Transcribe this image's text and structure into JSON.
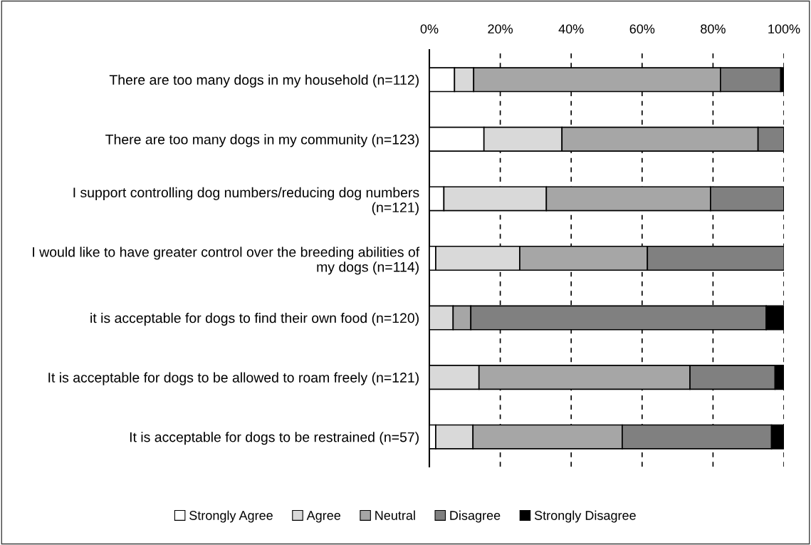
{
  "chart_data": {
    "type": "bar",
    "orientation": "horizontal",
    "stacked": true,
    "categories": [
      "There are too many dogs in my household (n=112)",
      "There are too many dogs in my community (n=123)",
      "I support controlling dog numbers/reducing dog numbers (n=121)",
      "I would like to have greater control over the breeding abilities of my dogs (n=114)",
      "it is acceptable for dogs to find their own food (n=120)",
      "It is acceptable for dogs to be allowed to roam freely (n=121)",
      "It is acceptable for dogs to be restrained (n=57)"
    ],
    "series": [
      {
        "name": "Strongly Agree",
        "color": "#ffffff",
        "values": [
          7.1,
          15.4,
          4.1,
          1.8,
          0,
          0,
          1.8
        ]
      },
      {
        "name": "Agree",
        "color": "#d9d9d9",
        "values": [
          5.4,
          22.0,
          28.9,
          23.7,
          6.7,
          14.0,
          10.5
        ]
      },
      {
        "name": "Neutral",
        "color": "#a6a6a6",
        "values": [
          69.6,
          55.3,
          46.3,
          36.0,
          5.0,
          59.5,
          42.1
        ]
      },
      {
        "name": "Disagree",
        "color": "#808080",
        "values": [
          17.0,
          7.3,
          20.7,
          38.6,
          83.3,
          24.0,
          42.1
        ]
      },
      {
        "name": "Strongly Disagree",
        "color": "#000000",
        "values": [
          0.9,
          0,
          0,
          0,
          5.0,
          2.5,
          3.5
        ]
      }
    ],
    "xlim": [
      0,
      100
    ],
    "xticks": [
      {
        "value": 0,
        "label": "0%"
      },
      {
        "value": 20,
        "label": "20%"
      },
      {
        "value": 40,
        "label": "40%"
      },
      {
        "value": 60,
        "label": "60%"
      },
      {
        "value": 80,
        "label": "80%"
      },
      {
        "value": 100,
        "label": "100%"
      }
    ],
    "grid": "x",
    "legend": "bottom"
  }
}
